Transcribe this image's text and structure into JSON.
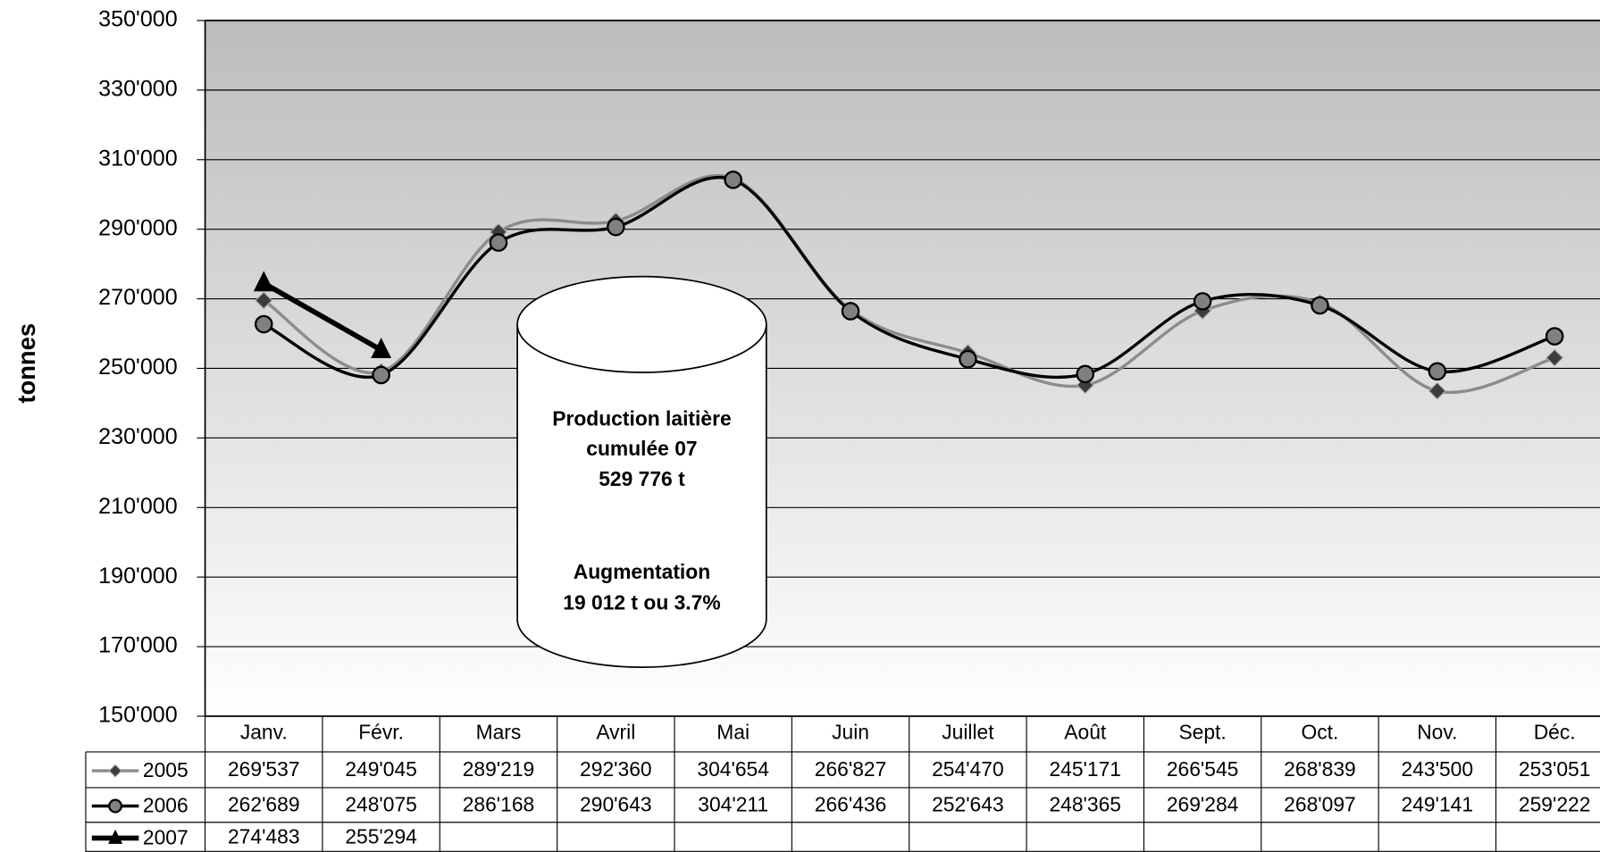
{
  "chart_data": {
    "type": "line",
    "y_label": "tonnes",
    "categories": [
      "Janv.",
      "Févr.",
      "Mars",
      "Avril",
      "Mai",
      "Juin",
      "Juillet",
      "Août",
      "Sept.",
      "Oct.",
      "Nov.",
      "Déc."
    ],
    "series": [
      {
        "name": "2005",
        "color": "#8c8c8c",
        "marker": "diamond",
        "marker_color": "#3c3c3c",
        "line_width": 3,
        "values": [
          269537,
          249045,
          289219,
          292360,
          304654,
          266827,
          254470,
          245171,
          266545,
          268839,
          243500,
          253051
        ],
        "value_labels": [
          "269'537",
          "249'045",
          "289'219",
          "292'360",
          "304'654",
          "266'827",
          "254'470",
          "245'171",
          "266'545",
          "268'839",
          "243'500",
          "253'051"
        ]
      },
      {
        "name": "2006",
        "color": "#000000",
        "marker": "circle",
        "marker_color": "#808080",
        "line_width": 3,
        "values": [
          262689,
          248075,
          286168,
          290643,
          304211,
          266436,
          252643,
          248365,
          269284,
          268097,
          249141,
          259222
        ],
        "value_labels": [
          "262'689",
          "248'075",
          "286'168",
          "290'643",
          "304'211",
          "266'436",
          "252'643",
          "248'365",
          "269'284",
          "268'097",
          "249'141",
          "259'222"
        ]
      },
      {
        "name": "2007",
        "color": "#000000",
        "marker": "triangle",
        "marker_color": "#000000",
        "line_width": 5,
        "values": [
          274483,
          255294,
          null,
          null,
          null,
          null,
          null,
          null,
          null,
          null,
          null,
          null
        ],
        "value_labels": [
          "274'483",
          "255'294",
          null,
          null,
          null,
          null,
          null,
          null,
          null,
          null,
          null,
          null
        ]
      }
    ],
    "ylim": [
      150000,
      350000
    ],
    "yticks": [
      {
        "value": 150000,
        "label": "150'000"
      },
      {
        "value": 170000,
        "label": "170'000"
      },
      {
        "value": 190000,
        "label": "190'000"
      },
      {
        "value": 210000,
        "label": "210'000"
      },
      {
        "value": 230000,
        "label": "230'000"
      },
      {
        "value": 250000,
        "label": "250'000"
      },
      {
        "value": 270000,
        "label": "270'000"
      },
      {
        "value": 290000,
        "label": "290'000"
      },
      {
        "value": 310000,
        "label": "310'000"
      },
      {
        "value": 330000,
        "label": "330'000"
      },
      {
        "value": 350000,
        "label": "350'000"
      }
    ],
    "grid": true,
    "annotations": [
      "Production laitière",
      "cumulée 07",
      "529 776 t",
      "Augmentation",
      "19 012 t ou 3.7%"
    ]
  }
}
